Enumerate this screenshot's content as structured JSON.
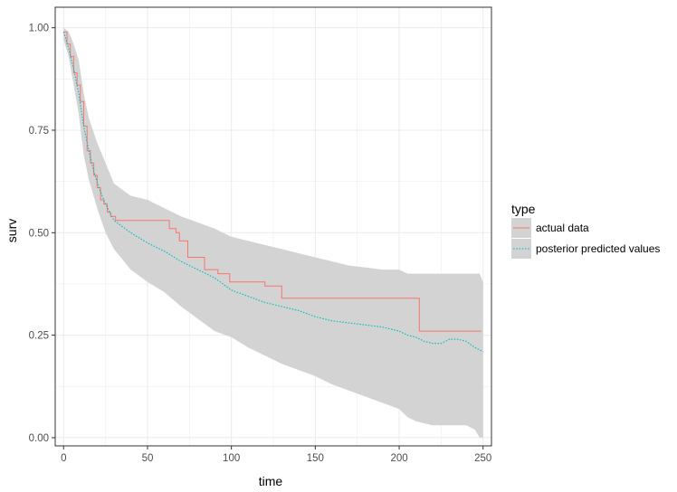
{
  "chart_data": {
    "type": "line",
    "xlabel": "time",
    "ylabel": "surv",
    "xlim": [
      -5,
      255
    ],
    "ylim": [
      -0.02,
      1.05
    ],
    "x_ticks": [
      0,
      50,
      100,
      150,
      200,
      250
    ],
    "x_tick_labels": [
      "0",
      "50",
      "100",
      "150",
      "200",
      "250"
    ],
    "y_ticks": [
      0.0,
      0.25,
      0.5,
      0.75,
      1.0
    ],
    "y_tick_labels": [
      "0.00",
      "0.25",
      "0.50",
      "0.75",
      "1.00"
    ],
    "grid": true,
    "legend": {
      "title": "type",
      "placement": "right",
      "entries": [
        "actual data",
        "posterior predicted values"
      ]
    },
    "colors": {
      "actual": "#f8766d",
      "predicted": "#00bfc4",
      "ribbon": "#d3d3d3",
      "panel_border": "#333333",
      "grid": "#ebebeb"
    },
    "series": [
      {
        "name": "actual data",
        "style": "solid",
        "step": true,
        "x": [
          0,
          2,
          4,
          6,
          8,
          10,
          12,
          14,
          16,
          18,
          20,
          22,
          24,
          26,
          28,
          30,
          31,
          59,
          63,
          67,
          69,
          74,
          84,
          92,
          99,
          120,
          130,
          203,
          212,
          249
        ],
        "y": [
          0.99,
          0.96,
          0.93,
          0.89,
          0.86,
          0.82,
          0.76,
          0.7,
          0.67,
          0.64,
          0.61,
          0.58,
          0.57,
          0.55,
          0.54,
          0.54,
          0.53,
          0.53,
          0.51,
          0.5,
          0.48,
          0.44,
          0.41,
          0.4,
          0.38,
          0.37,
          0.34,
          0.34,
          0.26,
          0.26
        ]
      },
      {
        "name": "posterior predicted values",
        "style": "dotted",
        "step": false,
        "x": [
          0,
          3,
          6,
          9,
          12,
          15,
          18,
          21,
          25,
          30,
          40,
          50,
          60,
          70,
          80,
          90,
          100,
          110,
          120,
          130,
          140,
          150,
          160,
          170,
          180,
          190,
          200,
          205,
          210,
          215,
          220,
          225,
          230,
          235,
          240,
          245,
          250
        ],
        "y": [
          0.99,
          0.95,
          0.9,
          0.84,
          0.76,
          0.7,
          0.65,
          0.61,
          0.57,
          0.53,
          0.5,
          0.475,
          0.455,
          0.43,
          0.41,
          0.39,
          0.36,
          0.345,
          0.33,
          0.32,
          0.31,
          0.295,
          0.285,
          0.28,
          0.275,
          0.27,
          0.26,
          0.25,
          0.245,
          0.235,
          0.23,
          0.23,
          0.24,
          0.24,
          0.235,
          0.22,
          0.21
        ]
      }
    ],
    "ribbon": {
      "x": [
        0,
        3,
        6,
        9,
        12,
        15,
        20,
        25,
        30,
        40,
        50,
        60,
        70,
        80,
        90,
        100,
        110,
        120,
        130,
        140,
        150,
        160,
        170,
        180,
        190,
        200,
        205,
        210,
        215,
        220,
        225,
        230,
        235,
        240,
        245,
        248,
        249,
        250
      ],
      "upper": [
        1.0,
        0.99,
        0.96,
        0.92,
        0.84,
        0.78,
        0.72,
        0.67,
        0.62,
        0.59,
        0.58,
        0.56,
        0.54,
        0.525,
        0.51,
        0.49,
        0.48,
        0.47,
        0.46,
        0.45,
        0.44,
        0.43,
        0.42,
        0.415,
        0.41,
        0.41,
        0.4,
        0.4,
        0.4,
        0.4,
        0.4,
        0.4,
        0.4,
        0.4,
        0.4,
        0.4,
        0.39,
        0.38
      ],
      "lower": [
        0.97,
        0.93,
        0.86,
        0.79,
        0.69,
        0.63,
        0.56,
        0.5,
        0.46,
        0.41,
        0.38,
        0.355,
        0.32,
        0.29,
        0.26,
        0.245,
        0.22,
        0.2,
        0.18,
        0.165,
        0.15,
        0.13,
        0.115,
        0.1,
        0.085,
        0.07,
        0.05,
        0.04,
        0.035,
        0.03,
        0.03,
        0.03,
        0.03,
        0.03,
        0.02,
        0.0,
        0.0,
        0.0
      ]
    }
  }
}
